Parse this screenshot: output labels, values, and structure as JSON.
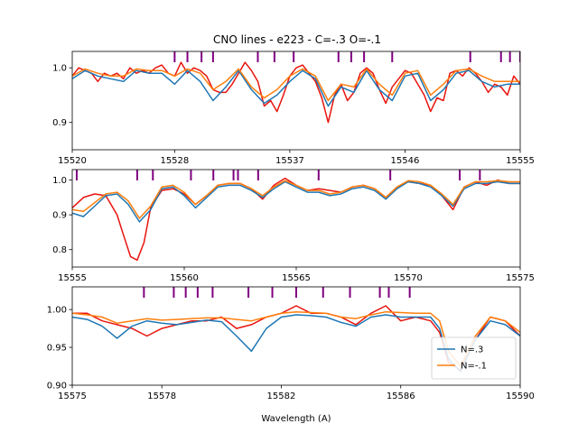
{
  "chart_data": {
    "type": "line",
    "title": "CNO lines - e223 - C=-.3 O=-.1",
    "xlabel": "Wavelength (A)",
    "colors": {
      "observed": "#e8140e",
      "n_high": "#1f77b4",
      "n_low": "#ff7f0e",
      "marker": "#800080"
    },
    "legend": {
      "placement": "lower-right",
      "entries": [
        {
          "name": "N=.3",
          "color": "#1f77b4"
        },
        {
          "name": "N=-.1",
          "color": "#ff7f0e"
        }
      ]
    },
    "panels": [
      {
        "xlim": [
          15520,
          15555
        ],
        "ylim": [
          0.85,
          1.03
        ],
        "xticks": [
          15520,
          15528,
          15537,
          15546,
          15555
        ],
        "xtick_labels": [
          "15520",
          "15528",
          "15537",
          "15546",
          "15555"
        ],
        "yticks": [
          0.9,
          1.0
        ],
        "ytick_labels": [
          "0.9",
          "1.0"
        ],
        "line_markers": [
          15528.0,
          15529.0,
          15530.1,
          15531.0,
          15534.5,
          15535.8,
          15537.3,
          15540.8,
          15541.8,
          15542.8,
          15545.0,
          15551.1,
          15553.5,
          15554.2,
          15555.0
        ],
        "observed": {
          "x": [
            15520,
            15520.5,
            15521,
            15521.5,
            15522,
            15522.5,
            15523,
            15523.5,
            15524,
            15524.5,
            15525,
            15525.5,
            15526,
            15526.5,
            15527,
            15527.5,
            15528,
            15528.5,
            15529,
            15529.5,
            15530,
            15530.5,
            15531,
            15531.5,
            15532,
            15532.5,
            15533,
            15533.5,
            15534,
            15534.5,
            15535,
            15535.5,
            15536,
            15536.5,
            15537,
            15537.5,
            15538,
            15538.5,
            15539,
            15539.5,
            15540,
            15540.5,
            15541,
            15541.5,
            15542,
            15542.5,
            15543,
            15543.5,
            15544,
            15544.5,
            15545,
            15545.5,
            15546,
            15546.5,
            15547,
            15547.5,
            15548,
            15548.5,
            15549,
            15549.5,
            15550,
            15550.5,
            15551,
            15551.5,
            15552,
            15552.5,
            15553,
            15553.5,
            15554,
            15554.5,
            15555
          ],
          "y": [
            0.985,
            1.0,
            0.995,
            0.99,
            0.975,
            0.99,
            0.985,
            0.99,
            0.98,
            1.0,
            0.99,
            0.995,
            0.99,
            1.0,
            1.005,
            0.99,
            0.985,
            1.01,
            0.99,
            1.0,
            0.995,
            0.985,
            0.96,
            0.955,
            0.955,
            0.97,
            0.99,
            1.01,
            0.995,
            0.975,
            0.93,
            0.94,
            0.92,
            0.95,
            0.985,
            1.0,
            1.005,
            0.99,
            0.975,
            0.945,
            0.9,
            0.95,
            0.97,
            0.94,
            0.955,
            0.99,
            1.0,
            0.99,
            0.96,
            0.935,
            0.965,
            0.98,
            0.995,
            0.99,
            0.97,
            0.95,
            0.92,
            0.945,
            0.94,
            0.99,
            0.995,
            0.985,
            1.0,
            0.99,
            0.975,
            0.955,
            0.97,
            0.965,
            0.95,
            0.985,
            0.97
          ]
        },
        "n_high": {
          "x": [
            15520,
            15521,
            15522,
            15523,
            15524,
            15525,
            15526,
            15527,
            15528,
            15529,
            15530,
            15531,
            15532,
            15533,
            15534,
            15535,
            15536,
            15537,
            15538,
            15539,
            15540,
            15541,
            15542,
            15543,
            15544,
            15545,
            15546,
            15547,
            15548,
            15549,
            15550,
            15551,
            15552,
            15553,
            15554,
            15555
          ],
          "y": [
            0.98,
            0.995,
            0.985,
            0.98,
            0.975,
            0.995,
            0.99,
            0.99,
            0.97,
            0.995,
            0.975,
            0.94,
            0.965,
            0.995,
            0.96,
            0.935,
            0.95,
            0.975,
            0.995,
            0.98,
            0.93,
            0.965,
            0.955,
            0.995,
            0.96,
            0.94,
            0.985,
            0.99,
            0.94,
            0.96,
            0.99,
            0.995,
            0.975,
            0.965,
            0.97,
            0.97
          ]
        },
        "n_low": {
          "x": [
            15520,
            15521,
            15522,
            15523,
            15524,
            15525,
            15526,
            15527,
            15528,
            15529,
            15530,
            15531,
            15532,
            15533,
            15534,
            15535,
            15536,
            15537,
            15538,
            15539,
            15540,
            15541,
            15542,
            15543,
            15544,
            15545,
            15546,
            15547,
            15548,
            15549,
            15550,
            15551,
            15552,
            15553,
            15554,
            15555
          ],
          "y": [
            0.985,
            0.998,
            0.99,
            0.985,
            0.985,
            0.998,
            0.995,
            0.995,
            0.985,
            0.998,
            0.99,
            0.96,
            0.975,
            0.998,
            0.965,
            0.945,
            0.96,
            0.985,
            0.998,
            0.985,
            0.94,
            0.97,
            0.965,
            0.998,
            0.97,
            0.95,
            0.99,
            0.995,
            0.95,
            0.97,
            0.995,
            0.998,
            0.985,
            0.975,
            0.975,
            0.975
          ]
        }
      },
      {
        "xlim": [
          15555,
          15575
        ],
        "ylim": [
          0.75,
          1.03
        ],
        "xticks": [
          15555,
          15560,
          15565,
          15570,
          15575
        ],
        "xtick_labels": [
          "15555",
          "15560",
          "15565",
          "15570",
          "15575"
        ],
        "yticks": [
          0.8,
          0.9,
          1.0
        ],
        "ytick_labels": [
          "0.8",
          "0.9",
          "1.0"
        ],
        "line_markers": [
          15555.2,
          15557.9,
          15558.6,
          15560.3,
          15561.3,
          15562.2,
          15562.4,
          15563.3,
          15566.0,
          15569.2,
          15572.3,
          15573.2
        ],
        "observed": {
          "x": [
            15555,
            15555.5,
            15556,
            15556.5,
            15557,
            15557.3,
            15557.6,
            15557.9,
            15558.2,
            15558.5,
            15559,
            15559.5,
            15560,
            15560.5,
            15561,
            15561.5,
            15562,
            15562.5,
            15563,
            15563.5,
            15564,
            15564.5,
            15565,
            15565.5,
            15566,
            15566.5,
            15567,
            15567.5,
            15568,
            15568.5,
            15569,
            15569.5,
            15570,
            15570.5,
            15571,
            15571.5,
            15572,
            15572.5,
            15573,
            15573.5,
            15574,
            15574.5,
            15575
          ],
          "y": [
            0.92,
            0.95,
            0.96,
            0.955,
            0.9,
            0.84,
            0.78,
            0.77,
            0.82,
            0.92,
            0.97,
            0.975,
            0.96,
            0.93,
            0.955,
            0.985,
            0.99,
            0.99,
            0.975,
            0.945,
            0.985,
            1.005,
            0.985,
            0.97,
            0.975,
            0.97,
            0.965,
            0.98,
            0.985,
            0.975,
            0.95,
            0.98,
            0.995,
            0.99,
            0.985,
            0.955,
            0.915,
            0.98,
            0.995,
            0.985,
            1.0,
            0.99,
            0.99
          ]
        },
        "n_high": {
          "x": [
            15555,
            15555.5,
            15556,
            15556.5,
            15557,
            15557.5,
            15558,
            15558.5,
            15559,
            15559.5,
            15560,
            15560.5,
            15561,
            15561.5,
            15562,
            15562.5,
            15563,
            15563.5,
            15564,
            15564.5,
            15565,
            15565.5,
            15566,
            15566.5,
            15567,
            15567.5,
            15568,
            15568.5,
            15569,
            15569.5,
            15570,
            15570.5,
            15571,
            15571.5,
            15572,
            15572.5,
            15573,
            15573.5,
            15574,
            15574.5,
            15575
          ],
          "y": [
            0.905,
            0.895,
            0.925,
            0.955,
            0.96,
            0.93,
            0.88,
            0.915,
            0.975,
            0.98,
            0.955,
            0.92,
            0.95,
            0.98,
            0.985,
            0.985,
            0.97,
            0.95,
            0.975,
            0.995,
            0.98,
            0.965,
            0.965,
            0.955,
            0.96,
            0.975,
            0.98,
            0.97,
            0.945,
            0.975,
            0.995,
            0.99,
            0.98,
            0.955,
            0.925,
            0.975,
            0.99,
            0.99,
            0.995,
            0.99,
            0.99
          ]
        },
        "n_low": {
          "x": [
            15555,
            15555.5,
            15556,
            15556.5,
            15557,
            15557.5,
            15558,
            15558.5,
            15559,
            15559.5,
            15560,
            15560.5,
            15561,
            15561.5,
            15562,
            15562.5,
            15563,
            15563.5,
            15564,
            15564.5,
            15565,
            15565.5,
            15566,
            15566.5,
            15567,
            15567.5,
            15568,
            15568.5,
            15569,
            15569.5,
            15570,
            15570.5,
            15571,
            15571.5,
            15572,
            15572.5,
            15573,
            15573.5,
            15574,
            15574.5,
            15575
          ],
          "y": [
            0.915,
            0.91,
            0.935,
            0.96,
            0.965,
            0.94,
            0.89,
            0.925,
            0.98,
            0.985,
            0.965,
            0.93,
            0.955,
            0.985,
            0.99,
            0.99,
            0.975,
            0.955,
            0.98,
            0.998,
            0.985,
            0.97,
            0.97,
            0.96,
            0.965,
            0.98,
            0.985,
            0.975,
            0.95,
            0.98,
            0.998,
            0.995,
            0.985,
            0.96,
            0.93,
            0.98,
            0.995,
            0.995,
            0.998,
            0.995,
            0.995
          ]
        }
      },
      {
        "xlim": [
          15575,
          15590
        ],
        "ylim": [
          0.9,
          1.03
        ],
        "xticks": [
          15575,
          15578,
          15582,
          15586,
          15590
        ],
        "xtick_labels": [
          "15575",
          "15578",
          "15582",
          "15586",
          "15590"
        ],
        "yticks": [
          0.9,
          0.95,
          1.0
        ],
        "ytick_labels": [
          "0.90",
          "0.95",
          "1.00"
        ],
        "line_markers": [
          15577.4,
          15578.4,
          15578.8,
          15579.2,
          15579.7,
          15580.9,
          15581.7,
          15582.5,
          15583.4,
          15584.3,
          15585.3,
          15585.6,
          15586.3
        ],
        "observed": {
          "x": [
            15575,
            15575.5,
            15576,
            15576.5,
            15577,
            15577.5,
            15578,
            15578.5,
            15579,
            15579.5,
            15580,
            15580.5,
            15581,
            15581.5,
            15582,
            15582.5,
            15583,
            15583.5,
            15584,
            15584.5,
            15585,
            15585.5,
            15586,
            15586.5,
            15587,
            15587.3,
            15587.6,
            15588,
            15588.5,
            15589,
            15589.5,
            15590
          ],
          "y": [
            0.995,
            0.995,
            0.985,
            0.98,
            0.975,
            0.965,
            0.975,
            0.98,
            0.985,
            0.985,
            0.99,
            0.975,
            0.98,
            0.99,
            0.995,
            1.005,
            0.995,
            0.995,
            0.99,
            0.98,
            0.995,
            1.005,
            0.985,
            0.99,
            0.985,
            0.97,
            0.93,
            0.92,
            0.96,
            0.99,
            0.985,
            0.965
          ]
        },
        "n_high": {
          "x": [
            15575,
            15575.5,
            15576,
            15576.5,
            15577,
            15577.5,
            15578,
            15578.5,
            15579,
            15579.5,
            15580,
            15580.5,
            15581,
            15581.5,
            15582,
            15582.5,
            15583,
            15583.5,
            15584,
            15584.5,
            15585,
            15585.5,
            15586,
            15586.5,
            15587,
            15587.3,
            15587.6,
            15588,
            15588.5,
            15589,
            15589.5,
            15590
          ],
          "y": [
            0.99,
            0.987,
            0.978,
            0.962,
            0.978,
            0.985,
            0.982,
            0.98,
            0.983,
            0.986,
            0.984,
            0.965,
            0.945,
            0.975,
            0.99,
            0.993,
            0.992,
            0.99,
            0.983,
            0.978,
            0.99,
            0.993,
            0.99,
            0.99,
            0.99,
            0.975,
            0.935,
            0.918,
            0.96,
            0.985,
            0.98,
            0.965
          ]
        },
        "n_low": {
          "x": [
            15575,
            15575.5,
            15576,
            15576.5,
            15577,
            15577.5,
            15578,
            15578.5,
            15579,
            15579.5,
            15580,
            15580.5,
            15581,
            15581.5,
            15582,
            15582.5,
            15583,
            15583.5,
            15584,
            15584.5,
            15585,
            15585.5,
            15586,
            15586.5,
            15587,
            15587.3,
            15587.6,
            15588,
            15588.5,
            15589,
            15589.5,
            15590
          ],
          "y": [
            0.995,
            0.993,
            0.99,
            0.982,
            0.985,
            0.988,
            0.986,
            0.987,
            0.988,
            0.989,
            0.989,
            0.987,
            0.985,
            0.99,
            0.995,
            0.997,
            0.996,
            0.995,
            0.99,
            0.988,
            0.993,
            0.997,
            0.996,
            0.995,
            0.995,
            0.985,
            0.945,
            0.925,
            0.965,
            0.99,
            0.985,
            0.97
          ]
        }
      }
    ]
  }
}
